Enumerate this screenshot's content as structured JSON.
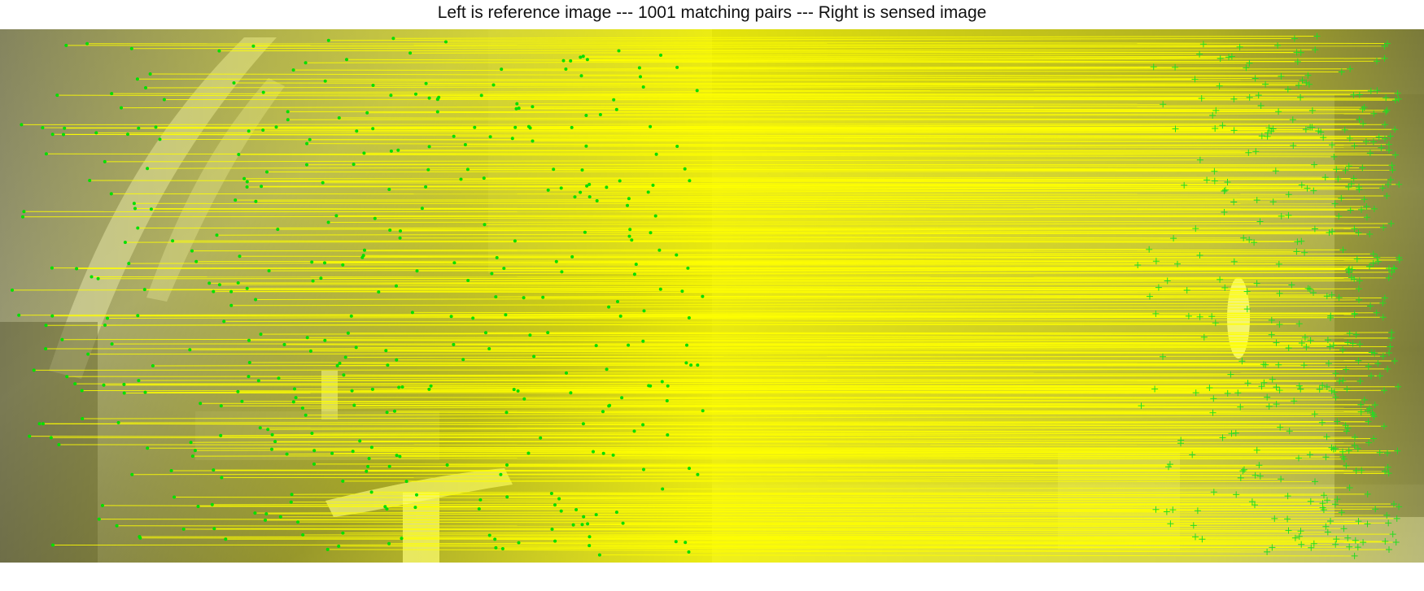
{
  "figure": {
    "title": "Left is reference image --- 1001 matching pairs --- Right is sensed image",
    "pair_count": 1001
  },
  "colors": {
    "match_line": "#ffff00",
    "reference_point": "#00e000",
    "sensed_marker": "#22dd22",
    "background": "#ffffff"
  },
  "images": {
    "left": {
      "name": "reference image",
      "kind": "grayscale infrared scene"
    },
    "right": {
      "name": "sensed image",
      "kind": "grayscale infrared scene"
    }
  },
  "markers": {
    "reference": "dot",
    "sensed": "plus"
  }
}
